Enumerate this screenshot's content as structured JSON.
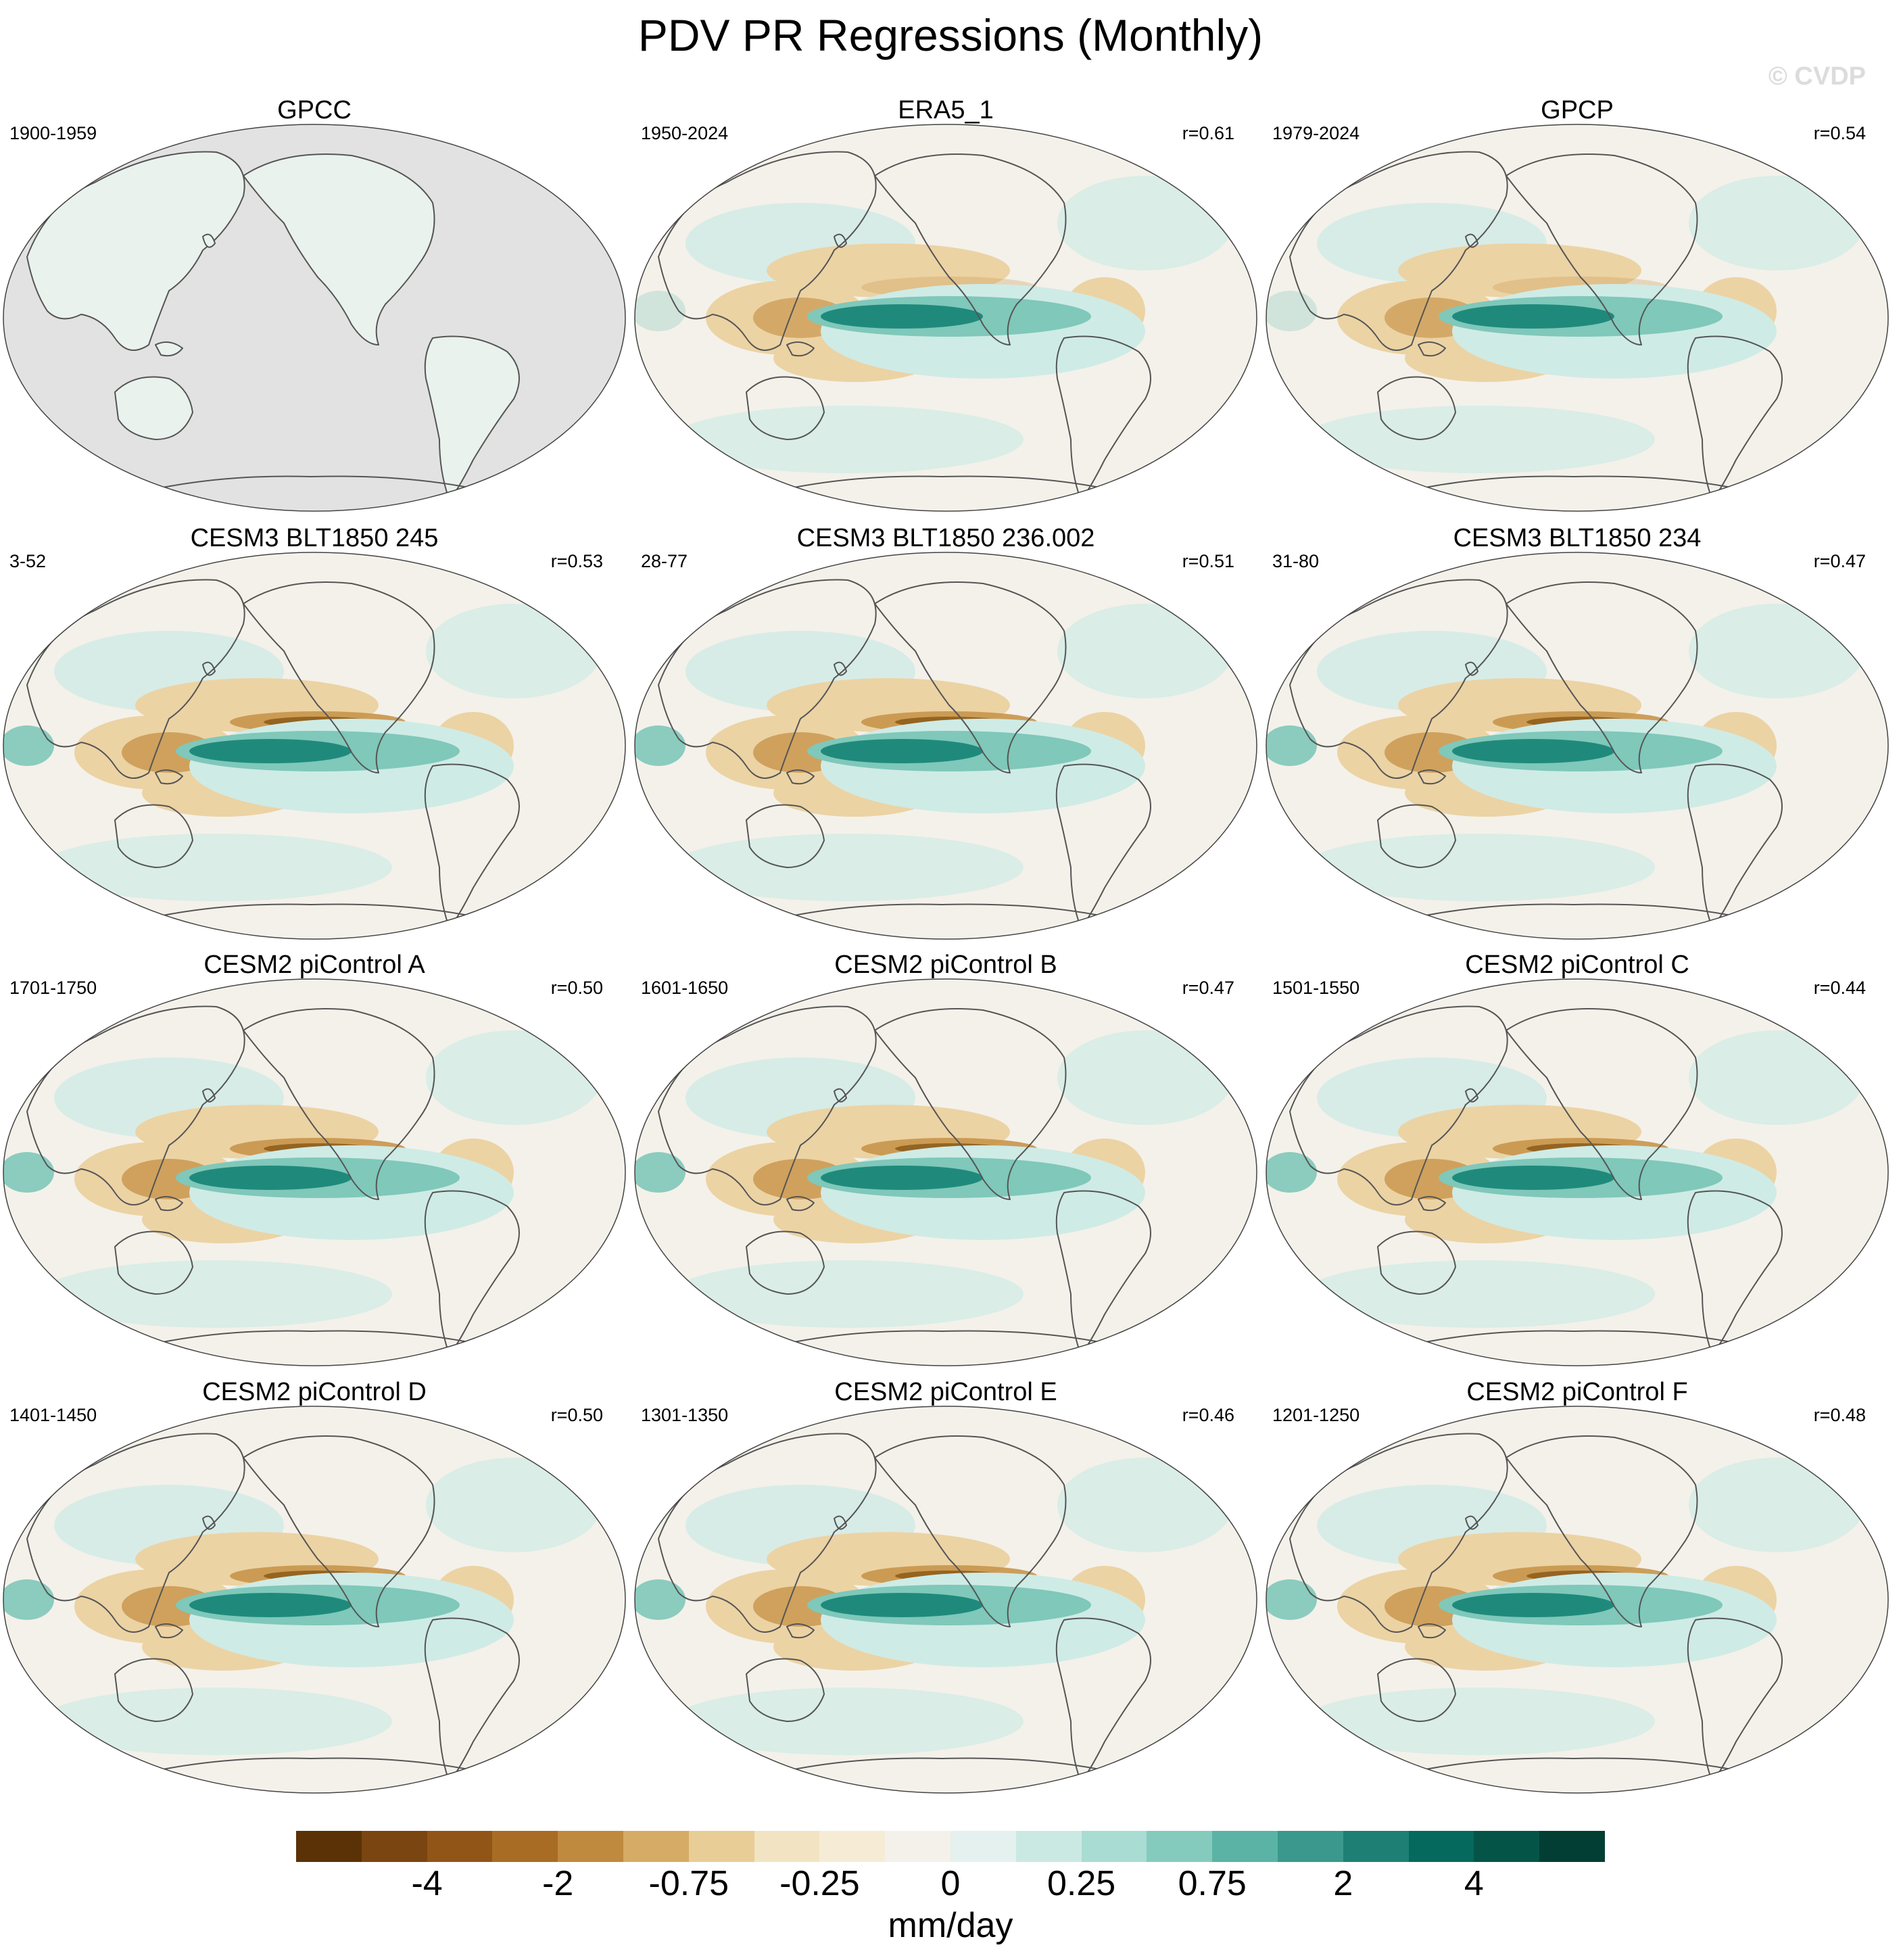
{
  "title": "PDV PR Regressions (Monthly)",
  "watermark": "© CVDP",
  "colors": {
    "ocean_neutral": "#f4f1ea",
    "land_missing": "#e2e2e2",
    "coast": "#555555",
    "dry_strong": "#8c5a19",
    "dry_medium": "#c8954b",
    "dry_light": "#ecd3a4",
    "wet_light": "#cfebe6",
    "wet_medium": "#7fc8ba",
    "wet_strong": "#1f8a7c"
  },
  "panels": [
    {
      "title": "GPCC",
      "period": "1900-1959",
      "r": ""
    },
    {
      "title": "ERA5_1",
      "period": "1950-2024",
      "r": "r=0.61"
    },
    {
      "title": "GPCP",
      "period": "1979-2024",
      "r": "r=0.54"
    },
    {
      "title": "CESM3 BLT1850 245",
      "period": "3-52",
      "r": "r=0.53"
    },
    {
      "title": "CESM3 BLT1850 236.002",
      "period": "28-77",
      "r": "r=0.51"
    },
    {
      "title": "CESM3 BLT1850 234",
      "period": "31-80",
      "r": "r=0.47"
    },
    {
      "title": "CESM2 piControl A",
      "period": "1701-1750",
      "r": "r=0.50"
    },
    {
      "title": "CESM2 piControl B",
      "period": "1601-1650",
      "r": "r=0.47"
    },
    {
      "title": "CESM2 piControl C",
      "period": "1501-1550",
      "r": "r=0.44"
    },
    {
      "title": "CESM2 piControl D",
      "period": "1401-1450",
      "r": "r=0.50"
    },
    {
      "title": "CESM2 piControl E",
      "period": "1301-1350",
      "r": "r=0.46"
    },
    {
      "title": "CESM2 piControl F",
      "period": "1201-1250",
      "r": "r=0.48"
    }
  ],
  "colorbar": {
    "colors": [
      "#5a3206",
      "#7a4510",
      "#925518",
      "#a96c24",
      "#c08a3e",
      "#d6ab66",
      "#e8cd96",
      "#f2e3c2",
      "#f6ecd6",
      "#f4f1ea",
      "#e4f1ee",
      "#cbe9e3",
      "#a9dcd2",
      "#84cbbd",
      "#5bb3a5",
      "#3a998c",
      "#1e8074",
      "#06695e",
      "#045548",
      "#023e33"
    ],
    "labels": [
      "-4",
      "-2",
      "-0.75",
      "-0.25",
      "0",
      "0.25",
      "0.75",
      "2",
      "4"
    ],
    "units": "mm/day"
  }
}
